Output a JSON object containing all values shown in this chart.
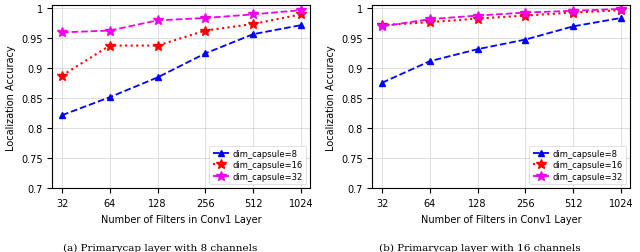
{
  "x_values": [
    32,
    64,
    128,
    256,
    512,
    1024
  ],
  "subplot_a": {
    "dim8": [
      0.822,
      0.852,
      0.885,
      0.925,
      0.957,
      0.972
    ],
    "dim16": [
      0.888,
      0.938,
      0.938,
      0.963,
      0.974,
      0.99
    ],
    "dim32": [
      0.96,
      0.963,
      0.98,
      0.984,
      0.99,
      0.997
    ]
  },
  "subplot_b": {
    "dim8": [
      0.876,
      0.912,
      0.932,
      0.948,
      0.97,
      0.984
    ],
    "dim16": [
      0.972,
      0.977,
      0.983,
      0.988,
      0.993,
      0.997
    ],
    "dim32": [
      0.97,
      0.982,
      0.988,
      0.993,
      0.996,
      0.999
    ]
  },
  "color8": "#0000FF",
  "color16": "#FF0000",
  "color32": "#EE00EE",
  "label8": "dim_capsule=8",
  "label16": "dim_capsule=16",
  "label32": "dim_capsule=32",
  "xlabel": "Number of Filters in Conv1 Layer",
  "ylabel": "Localization Accuracy",
  "ylim": [
    0.7,
    1.005
  ],
  "yticks": [
    0.7,
    0.75,
    0.8,
    0.85,
    0.9,
    0.95,
    1.0
  ],
  "xtick_labels": [
    "32",
    "64",
    "128",
    "256",
    "512",
    "1024"
  ],
  "caption_a": "(a) Primarycap layer with 8 channels",
  "caption_b": "(b) Primarycap layer with 16 channels",
  "background_color": "#FFFFFF",
  "grid_color": "#CCCCCC"
}
